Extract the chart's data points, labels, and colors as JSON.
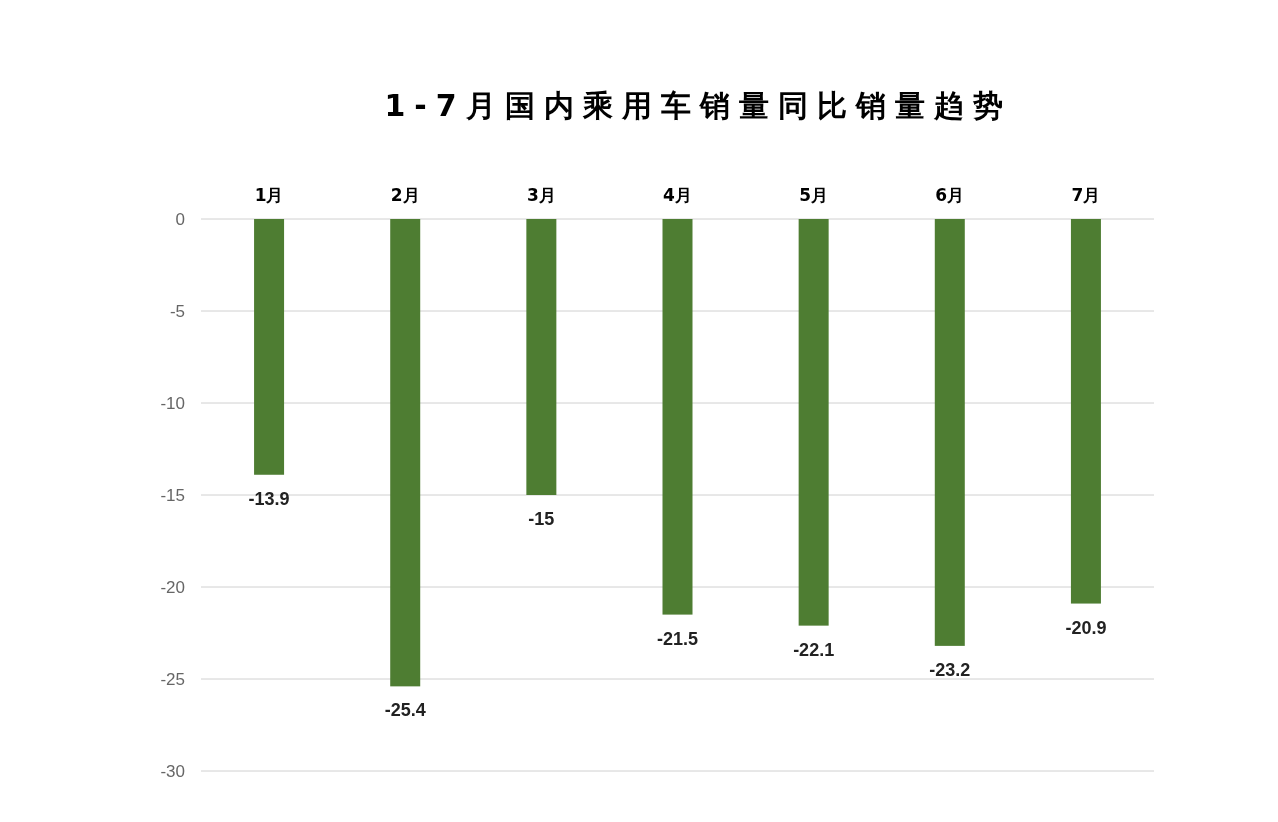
{
  "chart_data": {
    "type": "bar",
    "title": "1-7月国内乘用车销量同比销量趋势",
    "categories": [
      "1月",
      "2月",
      "3月",
      "4月",
      "5月",
      "6月",
      "7月"
    ],
    "values": [
      -13.9,
      -25.4,
      -15,
      -21.5,
      -22.1,
      -23.2,
      -20.9
    ],
    "color": "#4e7d32",
    "ylim": [
      -30,
      0
    ],
    "yticks": [
      -30,
      -25,
      -20,
      -15,
      -10,
      -5,
      0
    ],
    "grid": "y",
    "data_labels": true
  }
}
